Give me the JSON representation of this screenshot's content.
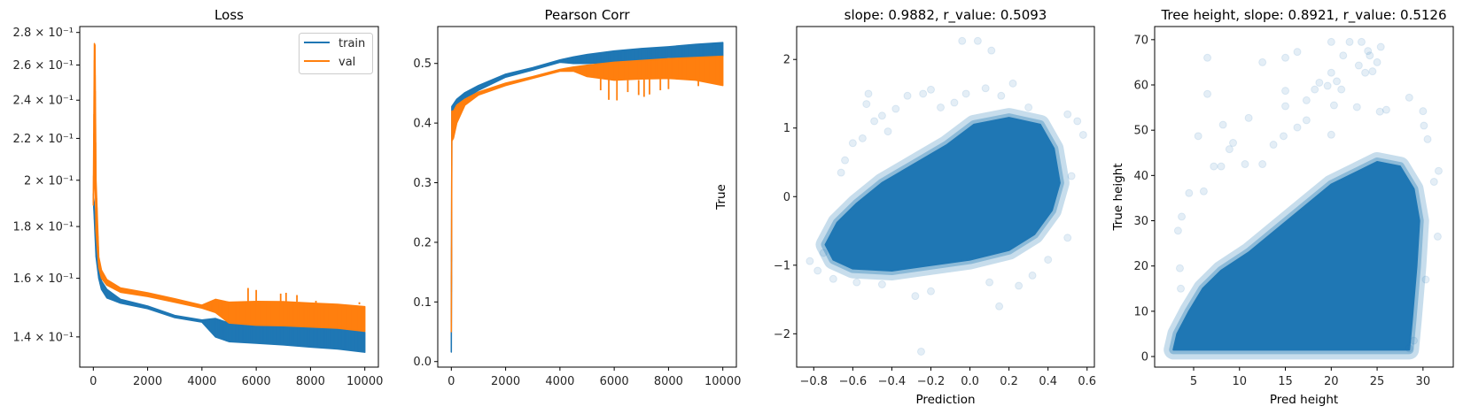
{
  "colors": {
    "train": "#1f77b4",
    "val": "#ff7f0e",
    "scatter": "#1f77b4"
  },
  "chart_data": [
    {
      "type": "line",
      "title": "Loss",
      "xlabel": "",
      "ylabel": "",
      "xlim": [
        -500,
        10500
      ],
      "ylim": [
        0.1307,
        0.2838
      ],
      "yscale": "log",
      "grid": false,
      "legend": "top-right",
      "xticks": [
        0,
        2000,
        4000,
        6000,
        8000,
        10000
      ],
      "xtick_labels": [
        "0",
        "2000",
        "4000",
        "6000",
        "8000",
        "10000"
      ],
      "yticks": [
        0.14,
        0.16,
        0.18,
        0.2,
        0.22,
        0.24,
        0.26,
        0.28
      ],
      "ytick_labels": [
        "1.4 × 10⁻¹",
        "1.6 × 10⁻¹",
        "1.8 × 10⁻¹",
        "2 × 10⁻¹",
        "2.2 × 10⁻¹",
        "2.4 × 10⁻¹",
        "2.6 × 10⁻¹",
        "2.8 × 10⁻¹"
      ],
      "series": [
        {
          "name": "train",
          "color_key": "train",
          "band": [
            [
              0,
              0.192,
              0.194
            ],
            [
              30,
              0.185,
              0.19
            ],
            [
              100,
              0.168,
              0.174
            ],
            [
              200,
              0.16,
              0.163
            ],
            [
              300,
              0.156,
              0.159
            ],
            [
              500,
              0.153,
              0.156
            ],
            [
              1000,
              0.1512,
              0.1525
            ],
            [
              2000,
              0.1493,
              0.1502
            ],
            [
              3000,
              0.1463,
              0.147
            ],
            [
              4000,
              0.1448,
              0.1455
            ],
            [
              4500,
              0.14,
              0.146
            ],
            [
              5000,
              0.1385,
              0.1445
            ],
            [
              6000,
              0.138,
              0.1442
            ],
            [
              7000,
              0.1375,
              0.1438
            ],
            [
              8000,
              0.1368,
              0.1432
            ],
            [
              9000,
              0.1362,
              0.1425
            ],
            [
              10000,
              0.1352,
              0.1415
            ]
          ],
          "spikes": []
        },
        {
          "name": "val",
          "color_key": "val",
          "band": [
            [
              0,
              0.189,
              0.192
            ],
            [
              40,
              0.2,
              0.273
            ],
            [
              60,
              0.21,
              0.272
            ],
            [
              100,
              0.178,
              0.2
            ],
            [
              200,
              0.164,
              0.168
            ],
            [
              300,
              0.16,
              0.163
            ],
            [
              500,
              0.1575,
              0.1595
            ],
            [
              1000,
              0.155,
              0.1565
            ],
            [
              2000,
              0.1535,
              0.1548
            ],
            [
              3000,
              0.1515,
              0.1527
            ],
            [
              4000,
              0.1495,
              0.1505
            ],
            [
              4500,
              0.148,
              0.1525
            ],
            [
              5000,
              0.1445,
              0.1515
            ],
            [
              6000,
              0.1438,
              0.1518
            ],
            [
              7000,
              0.1436,
              0.1517
            ],
            [
              8000,
              0.1432,
              0.1512
            ],
            [
              9000,
              0.1428,
              0.1508
            ],
            [
              10000,
              0.1418,
              0.15
            ]
          ],
          "spikes": [
            [
              5700,
              0.1565
            ],
            [
              6000,
              0.1558
            ],
            [
              6900,
              0.1545
            ],
            [
              7100,
              0.1548
            ],
            [
              7500,
              0.154
            ],
            [
              8200,
              0.152
            ],
            [
              9800,
              0.1515
            ]
          ]
        }
      ]
    },
    {
      "type": "line",
      "title": "Pearson Corr",
      "xlabel": "",
      "ylabel": "",
      "xlim": [
        -500,
        10500
      ],
      "ylim": [
        -0.0093,
        0.5619
      ],
      "yscale": "linear",
      "grid": false,
      "xticks": [
        0,
        2000,
        4000,
        6000,
        8000,
        10000
      ],
      "xtick_labels": [
        "0",
        "2000",
        "4000",
        "6000",
        "8000",
        "10000"
      ],
      "yticks": [
        0,
        0.1,
        0.2,
        0.3,
        0.4,
        0.5
      ],
      "ytick_labels": [
        "0.0",
        "0.1",
        "0.2",
        "0.3",
        "0.4",
        "0.5"
      ],
      "series": [
        {
          "name": "train",
          "color_key": "train",
          "band": [
            [
              0,
              0.016,
              0.05
            ],
            [
              20,
              0.42,
              0.428
            ],
            [
              200,
              0.43,
              0.44
            ],
            [
              500,
              0.44,
              0.451
            ],
            [
              1000,
              0.455,
              0.463
            ],
            [
              2000,
              0.477,
              0.482
            ],
            [
              3000,
              0.489,
              0.493
            ],
            [
              4000,
              0.502,
              0.506
            ],
            [
              4500,
              0.5,
              0.511
            ],
            [
              5000,
              0.5,
              0.515
            ],
            [
              6000,
              0.502,
              0.521
            ],
            [
              7000,
              0.505,
              0.525
            ],
            [
              8000,
              0.51,
              0.528
            ],
            [
              9000,
              0.511,
              0.532
            ],
            [
              10000,
              0.512,
              0.535
            ]
          ],
          "spikes": []
        },
        {
          "name": "val",
          "color_key": "val",
          "band": [
            [
              0,
              0.05,
              0.06
            ],
            [
              20,
              0.37,
              0.42
            ],
            [
              80,
              0.375,
              0.42
            ],
            [
              200,
              0.4,
              0.43
            ],
            [
              500,
              0.43,
              0.44
            ],
            [
              1000,
              0.447,
              0.452
            ],
            [
              2000,
              0.463,
              0.467
            ],
            [
              3000,
              0.475,
              0.478
            ],
            [
              4000,
              0.487,
              0.49
            ],
            [
              4500,
              0.487,
              0.494
            ],
            [
              5000,
              0.478,
              0.497
            ],
            [
              6000,
              0.472,
              0.502
            ],
            [
              7000,
              0.474,
              0.505
            ],
            [
              8000,
              0.475,
              0.508
            ],
            [
              9000,
              0.472,
              0.51
            ],
            [
              10000,
              0.463,
              0.512
            ]
          ],
          "spikes": [
            [
              5800,
              0.439
            ],
            [
              6100,
              0.438
            ],
            [
              5500,
              0.455
            ],
            [
              6500,
              0.452
            ],
            [
              6900,
              0.447
            ],
            [
              7100,
              0.444
            ],
            [
              7300,
              0.448
            ],
            [
              7700,
              0.455
            ],
            [
              8000,
              0.457
            ],
            [
              9100,
              0.462
            ],
            [
              9700,
              0.468
            ]
          ]
        }
      ]
    },
    {
      "type": "scatter",
      "title": "slope: 0.9882, r_value: 0.5093",
      "xlabel": "Prediction",
      "ylabel": "True",
      "xlim": [
        -0.8876,
        0.6374
      ],
      "ylim": [
        -2.486,
        2.48
      ],
      "yscale": "linear",
      "grid": false,
      "alpha": 0.12,
      "xticks": [
        -0.8,
        -0.6,
        -0.4,
        -0.2,
        0.0,
        0.2,
        0.4,
        0.6
      ],
      "xtick_labels": [
        "−0.8",
        "−0.6",
        "−0.4",
        "−0.2",
        "0.0",
        "0.2",
        "0.4",
        "0.6"
      ],
      "yticks": [
        -2,
        -1,
        0,
        1,
        2
      ],
      "ytick_labels": [
        "−2",
        "−1",
        "0",
        "1",
        "2"
      ],
      "dense_region": [
        [
          -0.74,
          -0.7
        ],
        [
          -0.7,
          -0.92
        ],
        [
          -0.6,
          -1.05
        ],
        [
          -0.4,
          -1.08
        ],
        [
          -0.2,
          -1.0
        ],
        [
          0.0,
          -0.92
        ],
        [
          0.2,
          -0.78
        ],
        [
          0.33,
          -0.55
        ],
        [
          0.42,
          -0.2
        ],
        [
          0.46,
          0.2
        ],
        [
          0.43,
          0.7
        ],
        [
          0.36,
          1.05
        ],
        [
          0.2,
          1.15
        ],
        [
          0.02,
          1.05
        ],
        [
          -0.12,
          0.75
        ],
        [
          -0.3,
          0.45
        ],
        [
          -0.45,
          0.2
        ],
        [
          -0.58,
          -0.1
        ],
        [
          -0.68,
          -0.38
        ]
      ],
      "points": [
        [
          -0.82,
          -0.94
        ],
        [
          -0.78,
          -1.08
        ],
        [
          -0.75,
          -0.82
        ],
        [
          -0.7,
          -1.2
        ],
        [
          -0.66,
          0.35
        ],
        [
          -0.64,
          0.53
        ],
        [
          -0.6,
          0.78
        ],
        [
          -0.55,
          0.85
        ],
        [
          -0.52,
          1.5
        ],
        [
          -0.53,
          1.35
        ],
        [
          -0.49,
          1.1
        ],
        [
          -0.45,
          1.18
        ],
        [
          -0.42,
          0.95
        ],
        [
          -0.38,
          1.28
        ],
        [
          -0.32,
          1.47
        ],
        [
          -0.24,
          1.5
        ],
        [
          -0.2,
          1.56
        ],
        [
          -0.15,
          1.3
        ],
        [
          -0.04,
          2.27
        ],
        [
          0.04,
          2.27
        ],
        [
          0.11,
          2.13
        ],
        [
          0.08,
          1.58
        ],
        [
          0.22,
          1.65
        ],
        [
          0.16,
          1.47
        ],
        [
          -0.28,
          -1.45
        ],
        [
          -0.25,
          -2.26
        ],
        [
          0.15,
          -1.6
        ],
        [
          -0.2,
          -1.38
        ],
        [
          0.4,
          -0.92
        ],
        [
          0.5,
          -0.6
        ],
        [
          0.52,
          0.3
        ],
        [
          0.55,
          1.1
        ],
        [
          0.58,
          0.9
        ],
        [
          0.5,
          1.2
        ],
        [
          0.3,
          1.3
        ],
        [
          -0.45,
          -1.28
        ],
        [
          0.1,
          -1.25
        ],
        [
          0.32,
          -1.15
        ],
        [
          0.25,
          -1.3
        ],
        [
          -0.58,
          -1.25
        ],
        [
          -0.08,
          1.37
        ],
        [
          -0.02,
          1.5
        ]
      ]
    },
    {
      "type": "scatter",
      "title": "Tree height, slope: 0.8921, r_value: 0.5126",
      "xlabel": "Pred height",
      "ylabel": "True height",
      "xlim": [
        0.75,
        33.3
      ],
      "ylim": [
        -2.34,
        72.9
      ],
      "yscale": "linear",
      "grid": false,
      "alpha": 0.12,
      "xticks": [
        5,
        10,
        15,
        20,
        25,
        30
      ],
      "xtick_labels": [
        "5",
        "10",
        "15",
        "20",
        "25",
        "30"
      ],
      "yticks": [
        0,
        10,
        20,
        30,
        40,
        50,
        60,
        70
      ],
      "ytick_labels": [
        "0",
        "10",
        "20",
        "30",
        "40",
        "50",
        "60",
        "70"
      ],
      "dense_region": [
        [
          2.8,
          1.5
        ],
        [
          28.5,
          1.5
        ],
        [
          28.8,
          8
        ],
        [
          29.3,
          20
        ],
        [
          29.6,
          30
        ],
        [
          29,
          37
        ],
        [
          27.5,
          42
        ],
        [
          25,
          43
        ],
        [
          23,
          41
        ],
        [
          20,
          38
        ],
        [
          17,
          33
        ],
        [
          14,
          28
        ],
        [
          11,
          23
        ],
        [
          8,
          19
        ],
        [
          6,
          15
        ],
        [
          4.5,
          10
        ],
        [
          3.2,
          5
        ]
      ],
      "points": [
        [
          6.5,
          66
        ],
        [
          6.5,
          58
        ],
        [
          12.5,
          65
        ],
        [
          15,
          66
        ],
        [
          16.3,
          67.3
        ],
        [
          20,
          69.5
        ],
        [
          22,
          69.5
        ],
        [
          23.3,
          69.5
        ],
        [
          24,
          67.5
        ],
        [
          25.4,
          68.4
        ],
        [
          24.2,
          66.5
        ],
        [
          21.3,
          66.5
        ],
        [
          23,
          64.3
        ],
        [
          25,
          65
        ],
        [
          23.7,
          62.7
        ],
        [
          24.5,
          63
        ],
        [
          20,
          62.7
        ],
        [
          20.6,
          60.8
        ],
        [
          18.7,
          60.5
        ],
        [
          19.6,
          59.8
        ],
        [
          18.2,
          59
        ],
        [
          15,
          58.7
        ],
        [
          21.1,
          59
        ],
        [
          17.3,
          56.6
        ],
        [
          15,
          55.3
        ],
        [
          20.3,
          55.5
        ],
        [
          22.8,
          55.1
        ],
        [
          28.5,
          57.2
        ],
        [
          25.3,
          54.1
        ],
        [
          26,
          54.5
        ],
        [
          30,
          54.2
        ],
        [
          11,
          52.7
        ],
        [
          8.2,
          51.2
        ],
        [
          16.3,
          50.6
        ],
        [
          17.3,
          52.2
        ],
        [
          5.5,
          48.7
        ],
        [
          14.8,
          48.7
        ],
        [
          20,
          49
        ],
        [
          13.7,
          46.8
        ],
        [
          9.3,
          47.2
        ],
        [
          8.9,
          45.8
        ],
        [
          4.5,
          36.1
        ],
        [
          3.3,
          27.8
        ],
        [
          6.1,
          36.5
        ],
        [
          7.2,
          42
        ],
        [
          8,
          42
        ],
        [
          10.6,
          42.5
        ],
        [
          12.5,
          42.5
        ],
        [
          31.7,
          41
        ],
        [
          31.2,
          38.6
        ],
        [
          31.6,
          26.5
        ],
        [
          30.5,
          48
        ],
        [
          30.1,
          51
        ],
        [
          3.7,
          30.9
        ],
        [
          3.5,
          19.5
        ],
        [
          3.6,
          15
        ],
        [
          29,
          3.5
        ],
        [
          28.5,
          1.8
        ],
        [
          30.3,
          17
        ]
      ]
    }
  ]
}
